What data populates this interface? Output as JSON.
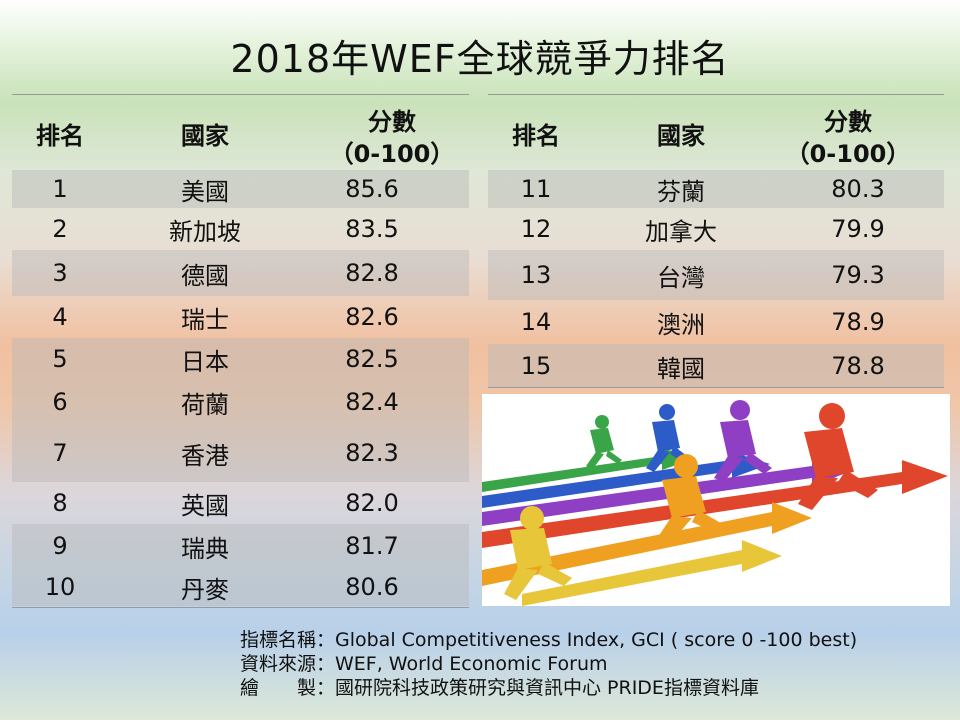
{
  "title": "2018年WEF全球競爭力排名",
  "headers": {
    "rank": "排名",
    "country": "國家",
    "score_line1": "分數",
    "score_line2": "（0-100）"
  },
  "left_rows": [
    {
      "rank": "1",
      "country": "美國",
      "score": "85.6"
    },
    {
      "rank": "2",
      "country": "新加坡",
      "score": "83.5"
    },
    {
      "rank": "3",
      "country": "德國",
      "score": "82.8"
    },
    {
      "rank": "4",
      "country": "瑞士",
      "score": "82.6"
    },
    {
      "rank": "5",
      "country": "日本",
      "score": "82.5"
    },
    {
      "rank": "6",
      "country": "荷蘭",
      "score": "82.4"
    },
    {
      "rank": "7",
      "country": "香港",
      "score": "82.3"
    },
    {
      "rank": "8",
      "country": "英國",
      "score": "82.0"
    },
    {
      "rank": "9",
      "country": "瑞典",
      "score": "81.7"
    },
    {
      "rank": "10",
      "country": "丹麥",
      "score": "80.6"
    }
  ],
  "right_rows": [
    {
      "rank": "11",
      "country": "芬蘭",
      "score": "80.3"
    },
    {
      "rank": "12",
      "country": "加拿大",
      "score": "79.9"
    },
    {
      "rank": "13",
      "country": "台灣",
      "score": "79.3"
    },
    {
      "rank": "14",
      "country": "澳洲",
      "score": "78.9"
    },
    {
      "rank": "15",
      "country": "韓國",
      "score": "78.8"
    }
  ],
  "footer": {
    "line1": "指標名稱：Global Competitiveness Index, GCI ( score  0 -100 best)",
    "line2": "資料來源：WEF, World Economic  Forum",
    "line3": "繪　　製：國研院科技政策研究與資訊中心  PRIDE指標資料庫"
  },
  "colors": {
    "row_shade": "#b9b9b9",
    "rule": "#9a9a9a"
  }
}
